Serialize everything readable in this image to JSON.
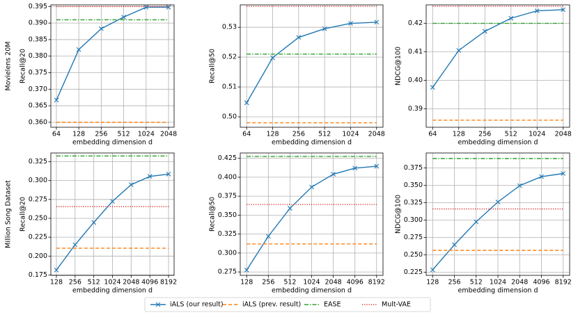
{
  "chart_data": [
    {
      "type": "line",
      "row_label": "Movielens 20M",
      "xlabel": "embedding dimension d",
      "ylabel": "Recall@20",
      "categories": [
        64,
        128,
        256,
        512,
        1024,
        2048
      ],
      "ylim": [
        0.3585,
        0.3955
      ],
      "yticks": [
        {
          "value": 0.36,
          "label": "0.360"
        },
        0.365,
        {
          "value": 0.37,
          "label": "0.370"
        },
        0.375,
        {
          "value": 0.38,
          "label": "0.380"
        },
        0.385,
        {
          "value": 0.39,
          "label": "0.390"
        },
        0.395
      ],
      "grid": true,
      "series": [
        {
          "name": "iALS (our result)",
          "color": "#1f77b4",
          "style": "solid",
          "marker": "x",
          "values": [
            0.3667,
            0.382,
            0.3883,
            0.3918,
            0.3948,
            0.3948
          ]
        },
        {
          "name": "iALS (prev. result)",
          "color": "#ff7f0e",
          "style": "dashed",
          "values": [
            0.36,
            0.36,
            0.36,
            0.36,
            0.36,
            0.36
          ]
        },
        {
          "name": "EASE",
          "color": "#2ca02c",
          "style": "dashdot",
          "values": [
            0.391,
            0.391,
            0.391,
            0.391,
            0.391,
            0.391
          ]
        },
        {
          "name": "Mult-VAE",
          "color": "#d62728",
          "style": "dotted",
          "values": [
            0.395,
            0.395,
            0.395,
            0.395,
            0.395,
            0.395
          ]
        }
      ]
    },
    {
      "type": "line",
      "xlabel": "embedding dimension d",
      "ylabel": "Recall@50",
      "categories": [
        64,
        128,
        256,
        512,
        1024,
        2048
      ],
      "ylim": [
        0.4965,
        0.5375
      ],
      "yticks": [
        {
          "value": 0.5,
          "label": "0.50"
        },
        0.51,
        0.52,
        0.53
      ],
      "grid": true,
      "series": [
        {
          "name": "iALS (our result)",
          "color": "#1f77b4",
          "style": "solid",
          "marker": "x",
          "values": [
            0.5047,
            0.5198,
            0.5266,
            0.5295,
            0.5313,
            0.5317
          ]
        },
        {
          "name": "iALS (prev. result)",
          "color": "#ff7f0e",
          "style": "dashed",
          "values": [
            0.498,
            0.498,
            0.498,
            0.498,
            0.498,
            0.498
          ]
        },
        {
          "name": "EASE",
          "color": "#2ca02c",
          "style": "dashdot",
          "values": [
            0.521,
            0.521,
            0.521,
            0.521,
            0.521,
            0.521
          ]
        },
        {
          "name": "Mult-VAE",
          "color": "#d62728",
          "style": "dotted",
          "values": [
            0.537,
            0.537,
            0.537,
            0.537,
            0.537,
            0.537
          ]
        }
      ]
    },
    {
      "type": "line",
      "xlabel": "embedding dimension d",
      "ylabel": "NDCG@100",
      "categories": [
        64,
        128,
        256,
        512,
        1024,
        2048
      ],
      "ylim": [
        0.3835,
        0.4265
      ],
      "yticks": [
        0.39,
        {
          "value": 0.4,
          "label": "0.40"
        },
        0.41,
        0.42
      ],
      "grid": true,
      "series": [
        {
          "name": "iALS (our result)",
          "color": "#1f77b4",
          "style": "solid",
          "marker": "x",
          "values": [
            0.3975,
            0.4105,
            0.4172,
            0.4218,
            0.4244,
            0.4248
          ]
        },
        {
          "name": "iALS (prev. result)",
          "color": "#ff7f0e",
          "style": "dashed",
          "values": [
            0.386,
            0.386,
            0.386,
            0.386,
            0.386,
            0.386
          ]
        },
        {
          "name": "EASE",
          "color": "#2ca02c",
          "style": "dashdot",
          "values": [
            0.42,
            0.42,
            0.42,
            0.42,
            0.42,
            0.42
          ]
        },
        {
          "name": "Mult-VAE",
          "color": "#d62728",
          "style": "dotted",
          "values": [
            0.426,
            0.426,
            0.426,
            0.426,
            0.426,
            0.426
          ]
        }
      ]
    },
    {
      "type": "line",
      "row_label": "Million Song Dataset",
      "xlabel": "embedding dimension d",
      "ylabel": "Recall@20",
      "categories": [
        128,
        256,
        512,
        1024,
        2048,
        4096,
        8192
      ],
      "ylim": [
        0.1745,
        0.3365
      ],
      "yticks": [
        0.175,
        {
          "value": 0.2,
          "label": "0.200"
        },
        0.225,
        {
          "value": 0.25,
          "label": "0.250"
        },
        0.275,
        {
          "value": 0.3,
          "label": "0.300"
        },
        0.325
      ],
      "grid": true,
      "series": [
        {
          "name": "iALS (our result)",
          "color": "#1f77b4",
          "style": "solid",
          "marker": "x",
          "values": [
            0.1815,
            0.215,
            0.2445,
            0.2725,
            0.2945,
            0.3055,
            0.3085
          ]
        },
        {
          "name": "iALS (prev. result)",
          "color": "#ff7f0e",
          "style": "dashed",
          "values": [
            0.2105,
            0.2105,
            0.2105,
            0.2105,
            0.2105,
            0.2105,
            0.2105
          ]
        },
        {
          "name": "EASE",
          "color": "#2ca02c",
          "style": "dashdot",
          "values": [
            0.3325,
            0.3325,
            0.3325,
            0.3325,
            0.3325,
            0.3325,
            0.3325
          ]
        },
        {
          "name": "Mult-VAE",
          "color": "#d62728",
          "style": "dotted",
          "values": [
            0.2655,
            0.2655,
            0.2655,
            0.2655,
            0.2655,
            0.2655,
            0.2655
          ]
        }
      ]
    },
    {
      "type": "line",
      "xlabel": "embedding dimension d",
      "ylabel": "Recall@50",
      "categories": [
        128,
        256,
        512,
        1024,
        2048,
        4096,
        8192
      ],
      "ylim": [
        0.2705,
        0.432
      ],
      "yticks": [
        0.275,
        {
          "value": 0.3,
          "label": "0.300"
        },
        0.325,
        {
          "value": 0.35,
          "label": "0.350"
        },
        0.375,
        {
          "value": 0.4,
          "label": "0.400"
        },
        0.425
      ],
      "grid": true,
      "series": [
        {
          "name": "iALS (our result)",
          "color": "#1f77b4",
          "style": "solid",
          "marker": "x",
          "values": [
            0.2775,
            0.322,
            0.359,
            0.387,
            0.404,
            0.412,
            0.4145
          ]
        },
        {
          "name": "iALS (prev. result)",
          "color": "#ff7f0e",
          "style": "dashed",
          "values": [
            0.312,
            0.312,
            0.312,
            0.312,
            0.312,
            0.312,
            0.312
          ]
        },
        {
          "name": "EASE",
          "color": "#2ca02c",
          "style": "dashdot",
          "values": [
            0.4275,
            0.4275,
            0.4275,
            0.4275,
            0.4275,
            0.4275,
            0.4275
          ]
        },
        {
          "name": "Mult-VAE",
          "color": "#d62728",
          "style": "dotted",
          "values": [
            0.364,
            0.364,
            0.364,
            0.364,
            0.364,
            0.364,
            0.364
          ]
        }
      ]
    },
    {
      "type": "line",
      "xlabel": "embedding dimension d",
      "ylabel": "NDCG@100",
      "categories": [
        128,
        256,
        512,
        1024,
        2048,
        4096,
        8192
      ],
      "ylim": [
        0.2205,
        0.3965
      ],
      "yticks": [
        0.225,
        {
          "value": 0.25,
          "label": "0.250"
        },
        0.275,
        {
          "value": 0.3,
          "label": "0.300"
        },
        0.325,
        {
          "value": 0.35,
          "label": "0.350"
        },
        0.375
      ],
      "grid": true,
      "series": [
        {
          "name": "iALS (our result)",
          "color": "#1f77b4",
          "style": "solid",
          "marker": "x",
          "values": [
            0.2285,
            0.2645,
            0.2975,
            0.326,
            0.3495,
            0.3625,
            0.367
          ]
        },
        {
          "name": "iALS (prev. result)",
          "color": "#ff7f0e",
          "style": "dashed",
          "values": [
            0.2565,
            0.2565,
            0.2565,
            0.2565,
            0.2565,
            0.2565,
            0.2565
          ]
        },
        {
          "name": "EASE",
          "color": "#2ca02c",
          "style": "dashdot",
          "values": [
            0.3885,
            0.3885,
            0.3885,
            0.3885,
            0.3885,
            0.3885,
            0.3885
          ]
        },
        {
          "name": "Mult-VAE",
          "color": "#d62728",
          "style": "dotted",
          "values": [
            0.316,
            0.316,
            0.316,
            0.316,
            0.316,
            0.316,
            0.316
          ]
        }
      ]
    }
  ]
}
